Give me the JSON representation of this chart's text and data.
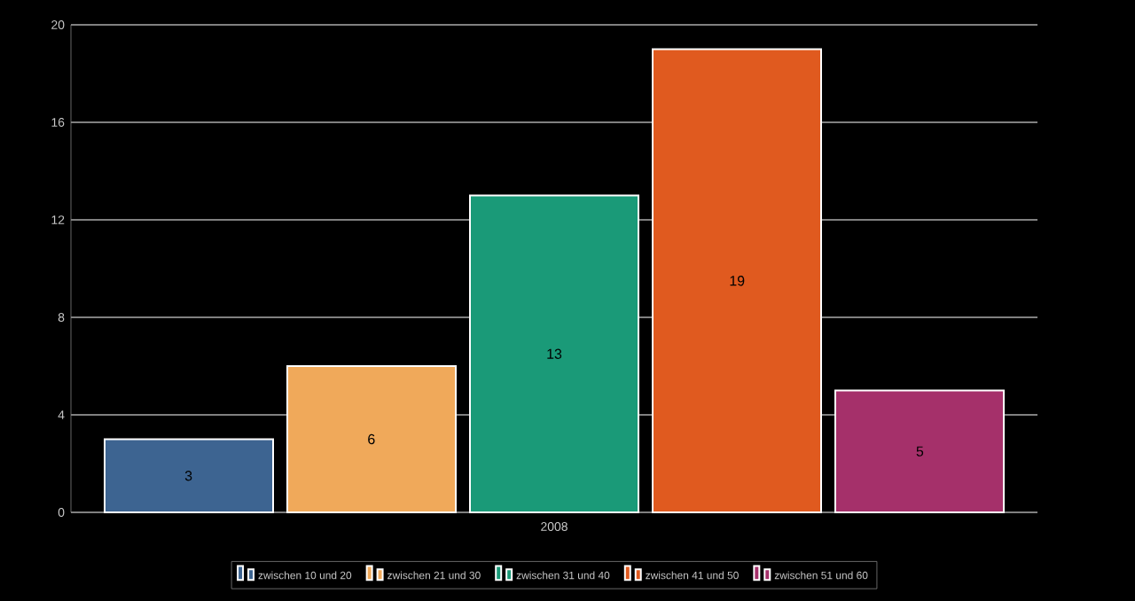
{
  "chart_data": {
    "type": "bar",
    "categories": [
      "2008"
    ],
    "series": [
      {
        "name": "zwischen 10 und 20",
        "color": "#3d6491",
        "values": [
          3
        ]
      },
      {
        "name": "zwischen 21 und 30",
        "color": "#f0a95a",
        "values": [
          6
        ]
      },
      {
        "name": "zwischen 31 und 40",
        "color": "#1a9a78",
        "values": [
          13
        ]
      },
      {
        "name": "zwischen 41 und 50",
        "color": "#e05a1f",
        "values": [
          19
        ]
      },
      {
        "name": "zwischen 51 und 60",
        "color": "#a5306a",
        "values": [
          5
        ]
      }
    ],
    "ylim": [
      0,
      20
    ],
    "yticks": [
      0,
      4,
      8,
      12,
      16,
      20
    ],
    "grid": "y",
    "legend": "bottom",
    "data_labels": true
  }
}
